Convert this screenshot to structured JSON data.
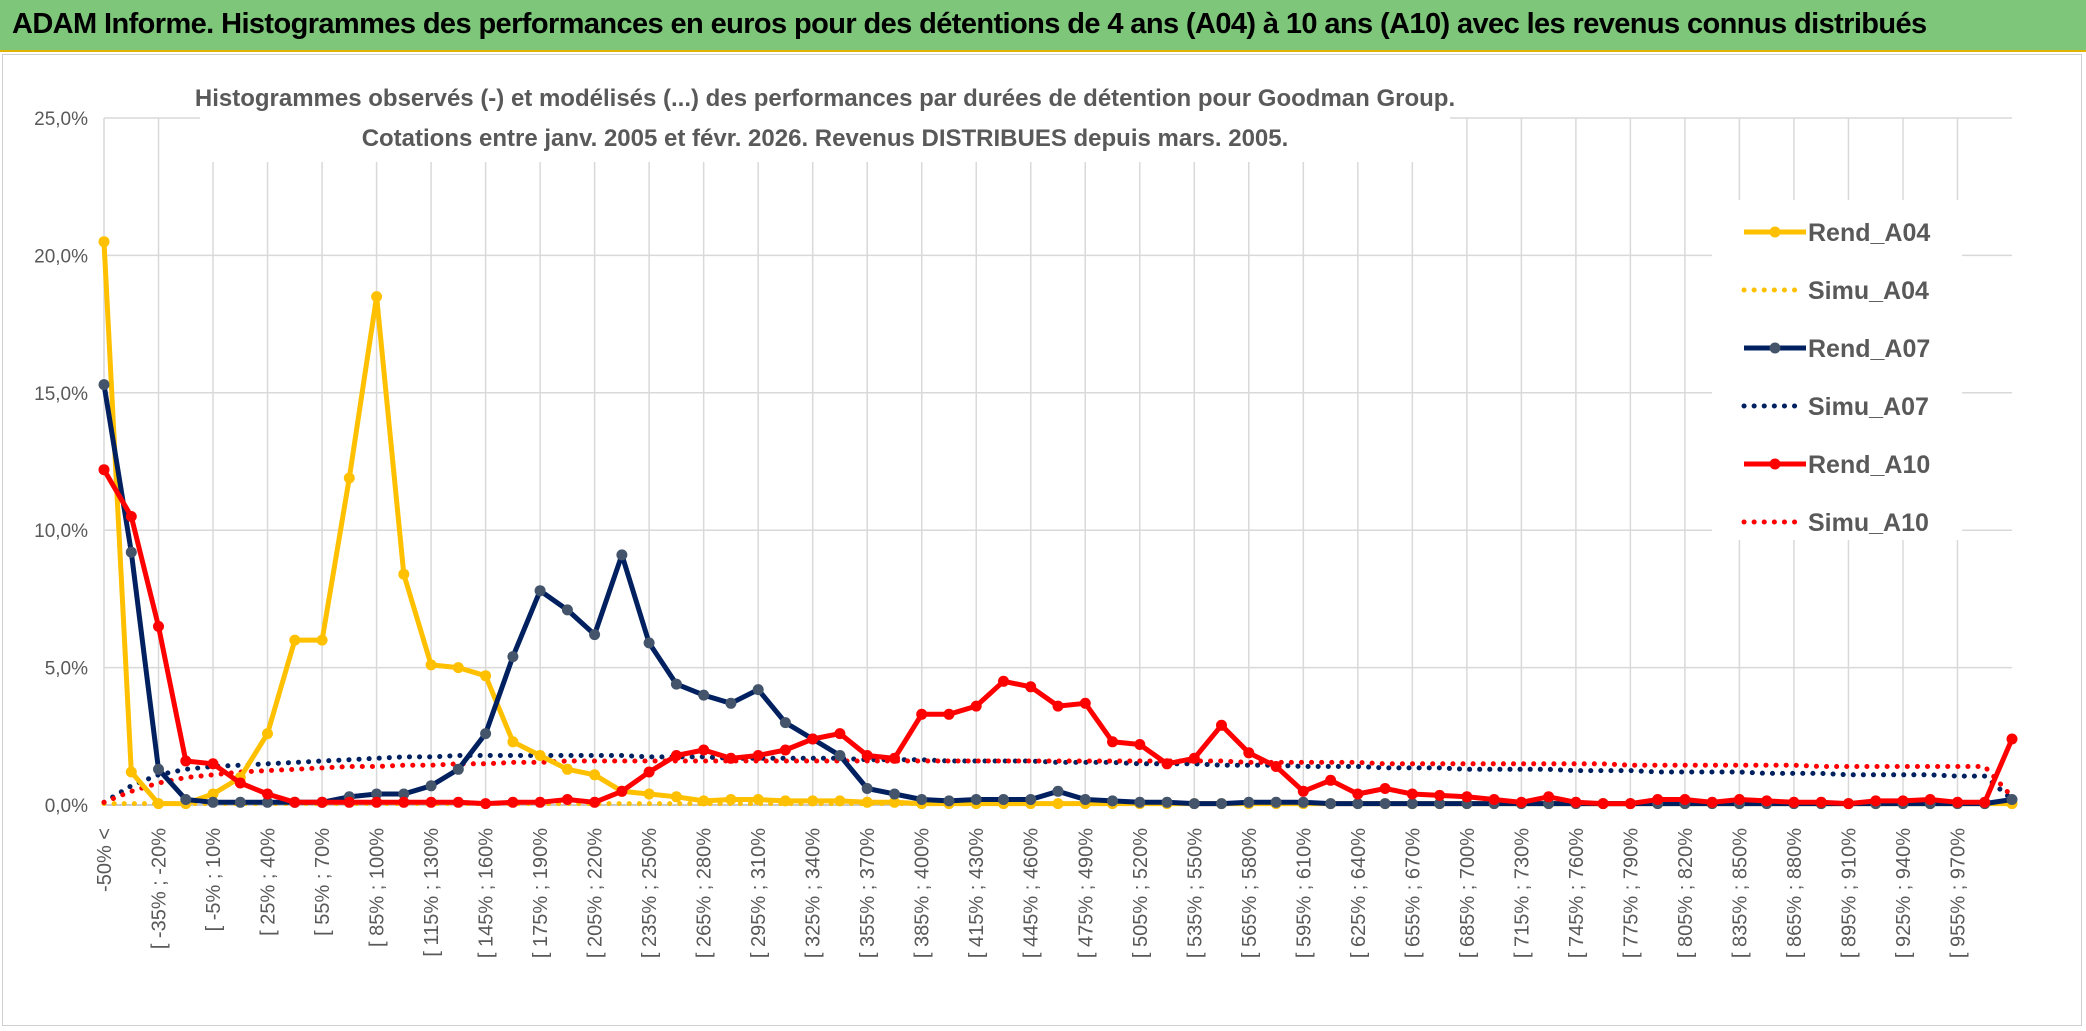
{
  "banner": {
    "title": "ADAM Informe. Histogrammes des performances en euros pour des détentions de 4 ans (A04) à 10 ans (A10) avec les revenus connus distribués"
  },
  "chart_data": {
    "type": "line",
    "title_line1": "Histogrammes observés (-) et modélisés (...) des performances par durées de détention pour Goodman Group.",
    "title_line2": "Cotations entre janv. 2005 et févr. 2026. Revenus DISTRIBUES depuis mars. 2005.",
    "xlabel": "",
    "ylabel": "",
    "ylim": [
      0,
      25
    ],
    "y_ticks": [
      "0,0%",
      "5,0%",
      "10,0%",
      "15,0%",
      "20,0%",
      "25,0%"
    ],
    "x_tick_labels": [
      "-50% <",
      "[ -35% ; -20%",
      "[ -5% ; 10%",
      "[ 25% ; 40%",
      "[ 55% ; 70%",
      "[ 85% ; 100%",
      "[ 115% ; 130%",
      "[ 145% ; 160%",
      "[ 175% ; 190%",
      "[ 205% ; 220%",
      "[ 235% ; 250%",
      "[ 265% ; 280%",
      "[ 295% ; 310%",
      "[ 325% ; 340%",
      "[ 355% ; 370%",
      "[ 385% ; 400%",
      "[ 415% ; 430%",
      "[ 445% ; 460%",
      "[ 475% ; 490%",
      "[ 505% ; 520%",
      "[ 535% ; 550%",
      "[ 565% ; 580%",
      "[ 595% ; 610%",
      "[ 625% ; 640%",
      "[ 655% ; 670%",
      "[ 685% ; 700%",
      "[ 715% ; 730%",
      "[ 745% ; 760%",
      "[ 775% ; 790%",
      "[ 805% ; 820%",
      "[ 835% ; 850%",
      "[ 865% ; 880%",
      "[ 895% ; 910%",
      "[ 925% ; 940%",
      "[ 955% ; 970%"
    ],
    "num_bins": 71,
    "legend_position": "right",
    "series": [
      {
        "name": "Rend_A04",
        "style": "solid",
        "color": "#ffc000",
        "values": [
          20.5,
          1.2,
          0.05,
          0.05,
          0.4,
          1.0,
          2.6,
          6.0,
          6.0,
          11.9,
          18.5,
          8.4,
          5.1,
          5.0,
          4.7,
          2.3,
          1.8,
          1.3,
          1.1,
          0.5,
          0.4,
          0.3,
          0.15,
          0.2,
          0.2,
          0.15,
          0.15,
          0.15,
          0.1,
          0.1,
          0.05,
          0.05,
          0.05,
          0.05,
          0.05,
          0.05,
          0.05,
          0.05,
          0.05,
          0.05,
          0.05,
          0.05,
          0.05,
          0.05,
          0.05,
          0.05,
          0.05,
          0.05,
          0.05,
          0.05,
          0.05,
          0.05,
          0.05,
          0.05,
          0.05,
          0.05,
          0.05,
          0.05,
          0.05,
          0.05,
          0.05,
          0.05,
          0.05,
          0.05,
          0.05,
          0.05,
          0.05,
          0.05,
          0.05,
          0.05,
          0.05
        ]
      },
      {
        "name": "Simu_A04",
        "style": "dotted",
        "color": "#ffc000",
        "values": [
          0.05,
          0.05,
          0.05,
          0.05,
          0.05,
          0.05,
          0.05,
          0.05,
          0.05,
          0.05,
          0.05,
          0.05,
          0.05,
          0.05,
          0.05,
          0.05,
          0.05,
          0.05,
          0.05,
          0.05,
          0.05,
          0.05,
          0.05,
          0.05,
          0.05,
          0.05,
          0.05,
          0.05,
          0.05,
          0.05,
          0.05,
          0.05,
          0.05,
          0.05,
          0.05,
          0.05,
          0.05,
          0.05,
          0.05,
          0.05,
          0.05,
          0.05,
          0.05,
          0.05,
          0.05,
          0.05,
          0.05,
          0.05,
          0.05,
          0.05,
          0.05,
          0.05,
          0.05,
          0.05,
          0.05,
          0.05,
          0.05,
          0.05,
          0.05,
          0.05,
          0.05,
          0.05,
          0.05,
          0.05,
          0.05,
          0.05,
          0.05,
          0.05,
          0.05,
          0.05,
          0.05
        ]
      },
      {
        "name": "Rend_A07",
        "style": "solid",
        "color": "#002060",
        "values": [
          15.3,
          9.2,
          1.3,
          0.2,
          0.1,
          0.1,
          0.1,
          0.1,
          0.1,
          0.3,
          0.4,
          0.4,
          0.7,
          1.3,
          2.6,
          5.4,
          7.8,
          7.1,
          6.2,
          9.1,
          5.9,
          4.4,
          4.0,
          3.7,
          4.2,
          3.0,
          2.4,
          1.8,
          0.6,
          0.4,
          0.2,
          0.15,
          0.2,
          0.2,
          0.2,
          0.5,
          0.2,
          0.15,
          0.1,
          0.1,
          0.05,
          0.05,
          0.1,
          0.1,
          0.1,
          0.05,
          0.05,
          0.05,
          0.05,
          0.05,
          0.05,
          0.05,
          0.05,
          0.05,
          0.05,
          0.05,
          0.05,
          0.05,
          0.05,
          0.05,
          0.05,
          0.05,
          0.05,
          0.05,
          0.05,
          0.05,
          0.05,
          0.05,
          0.05,
          0.05,
          0.2
        ]
      },
      {
        "name": "Simu_A07",
        "style": "dotted",
        "color": "#002060",
        "values": [
          0.1,
          0.7,
          1.1,
          1.3,
          1.4,
          1.45,
          1.5,
          1.55,
          1.6,
          1.65,
          1.7,
          1.75,
          1.75,
          1.8,
          1.8,
          1.8,
          1.8,
          1.8,
          1.8,
          1.8,
          1.75,
          1.75,
          1.75,
          1.7,
          1.7,
          1.7,
          1.7,
          1.7,
          1.65,
          1.65,
          1.65,
          1.6,
          1.6,
          1.6,
          1.6,
          1.55,
          1.55,
          1.55,
          1.5,
          1.5,
          1.5,
          1.45,
          1.45,
          1.45,
          1.4,
          1.4,
          1.4,
          1.35,
          1.35,
          1.35,
          1.3,
          1.3,
          1.3,
          1.3,
          1.25,
          1.25,
          1.25,
          1.2,
          1.2,
          1.2,
          1.2,
          1.15,
          1.15,
          1.15,
          1.1,
          1.1,
          1.1,
          1.1,
          1.05,
          1.05,
          0.2
        ]
      },
      {
        "name": "Rend_A10",
        "style": "solid",
        "color": "#ff0000",
        "values": [
          12.2,
          10.5,
          6.5,
          1.6,
          1.5,
          0.8,
          0.4,
          0.1,
          0.1,
          0.1,
          0.1,
          0.1,
          0.1,
          0.1,
          0.05,
          0.1,
          0.1,
          0.2,
          0.1,
          0.5,
          1.2,
          1.8,
          2.0,
          1.7,
          1.8,
          2.0,
          2.4,
          2.6,
          1.8,
          1.7,
          3.3,
          3.3,
          3.6,
          4.5,
          4.3,
          3.6,
          3.7,
          2.3,
          2.2,
          1.5,
          1.7,
          2.9,
          1.9,
          1.4,
          0.5,
          0.9,
          0.4,
          0.6,
          0.4,
          0.35,
          0.3,
          0.2,
          0.1,
          0.3,
          0.1,
          0.05,
          0.05,
          0.2,
          0.2,
          0.1,
          0.2,
          0.15,
          0.1,
          0.1,
          0.05,
          0.15,
          0.15,
          0.2,
          0.1,
          0.1,
          2.4
        ]
      },
      {
        "name": "Simu_A10",
        "style": "dotted",
        "color": "#ff0000",
        "values": [
          0.1,
          0.5,
          0.8,
          1.0,
          1.1,
          1.2,
          1.25,
          1.3,
          1.35,
          1.4,
          1.4,
          1.45,
          1.45,
          1.5,
          1.5,
          1.55,
          1.55,
          1.6,
          1.6,
          1.6,
          1.6,
          1.6,
          1.6,
          1.6,
          1.6,
          1.6,
          1.6,
          1.6,
          1.6,
          1.6,
          1.6,
          1.6,
          1.6,
          1.6,
          1.6,
          1.6,
          1.6,
          1.6,
          1.6,
          1.6,
          1.6,
          1.6,
          1.55,
          1.55,
          1.55,
          1.55,
          1.55,
          1.5,
          1.5,
          1.5,
          1.5,
          1.5,
          1.5,
          1.5,
          1.5,
          1.5,
          1.45,
          1.45,
          1.45,
          1.45,
          1.45,
          1.45,
          1.45,
          1.4,
          1.4,
          1.4,
          1.4,
          1.4,
          1.4,
          1.4,
          0.3
        ]
      }
    ]
  }
}
